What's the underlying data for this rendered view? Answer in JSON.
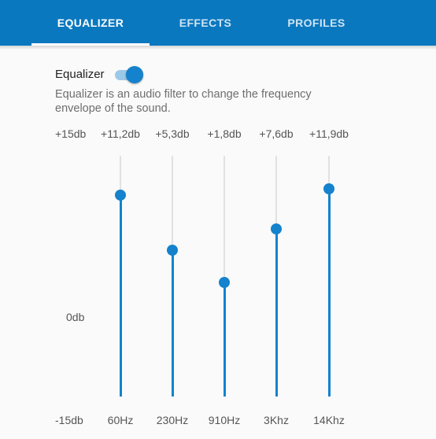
{
  "tabs": [
    {
      "label": "EQUALIZER",
      "active": true
    },
    {
      "label": "EFFECTS",
      "active": false
    },
    {
      "label": "PROFILES",
      "active": false
    }
  ],
  "equalizer": {
    "title": "Equalizer",
    "enabled": true,
    "description": "Equalizer is an audio filter to change the frequency envelope of the sound.",
    "max_label": "+15db",
    "mid_label": "0db",
    "min_label": "-15db",
    "range_db": [
      -15,
      15
    ],
    "bands": [
      {
        "freq": "60Hz",
        "value_label": "+11,2db",
        "value_db": 11.2
      },
      {
        "freq": "230Hz",
        "value_label": "+5,3db",
        "value_db": 5.3
      },
      {
        "freq": "910Hz",
        "value_label": "+1,8db",
        "value_db": 1.8
      },
      {
        "freq": "3Khz",
        "value_label": "+7,6db",
        "value_db": 7.6
      },
      {
        "freq": "14Khz",
        "value_label": "+11,9db",
        "value_db": 11.9
      }
    ]
  },
  "colors": {
    "accent": "#1482cc",
    "tabbar": "#0a78bf",
    "track": "#e1e1e1"
  }
}
